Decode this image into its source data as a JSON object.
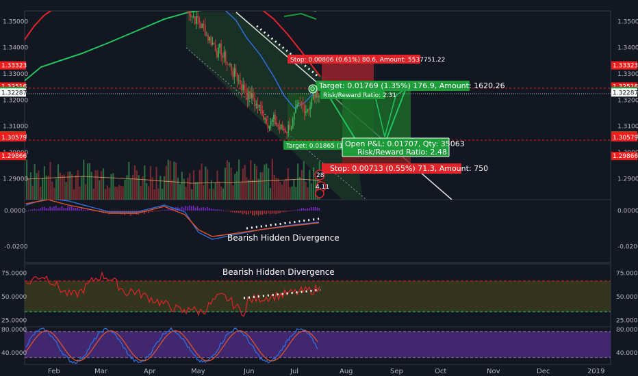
{
  "chart_data": {
    "type": "candlestick",
    "instrument_note": "",
    "price_axis": {
      "range": [
        1.282,
        1.354
      ],
      "ticks": [
        "1.35000",
        "1.34000",
        "1.33000",
        "1.32000",
        "1.31000",
        "1.30000",
        "1.29000"
      ],
      "badges": [
        {
          "label": "1.33323",
          "value": 1.33323,
          "color": "#ef1d1d"
        },
        {
          "label": "1.32517",
          "value": 1.32517,
          "color": "#ef1d1d"
        },
        {
          "label": "1.32516",
          "value": 1.32516,
          "color": "#ef1d1d"
        },
        {
          "label": "1.32348",
          "value": 1.32348,
          "color": "#1e9e3a"
        },
        {
          "label": "1.32287",
          "value": 1.32287,
          "color": "#ffffff"
        },
        {
          "label": "1.30652",
          "value": 1.30652,
          "color": "#1e9e3a"
        },
        {
          "label": "1.30639",
          "value": 1.30639,
          "color": "#ef1d1d"
        },
        {
          "label": "1.30579",
          "value": 1.30579,
          "color": "#ef1d1d"
        },
        {
          "label": "1.29866",
          "value": 1.29866,
          "color": "#ef1d1d"
        }
      ]
    },
    "macd_axis": {
      "range": [
        -0.029,
        0.0062
      ],
      "ticks": [
        "0.0000",
        "-0.0200"
      ]
    },
    "rsi_axis": {
      "range": [
        18,
        85
      ],
      "ticks": [
        "75.0000",
        "50.0000",
        "25.0000"
      ],
      "overbought": 70,
      "oversold": 30
    },
    "stoch_axis": {
      "range": [
        20,
        85
      ],
      "ticks": [
        "80.0000",
        "40.0000"
      ]
    },
    "time_axis": [
      "Feb",
      "Mar",
      "Apr",
      "May",
      "Jun",
      "Jul",
      "Aug",
      "Sep",
      "Oct",
      "Nov",
      "Dec",
      "2019"
    ],
    "trade_boxes": {
      "first": {
        "stop_label": "Stop: 0.00806 (0.61%) 80.6, Amount: 5537751.22",
        "target_label": "Target: 0.01865 (1.41",
        "entry": 1.3214,
        "stop": 1.333,
        "target": 1.306
      },
      "second": {
        "target_label": "Target: 0.01769 (1.35%) 176.9, Amount: 1620.26",
        "rr_label": "Risk/Reward Ratio: 2.31",
        "open_pnl_label": "Open P&L: 0.01707, Qty: 35063",
        "open_rr_label": "Risk/Reward Ratio: 2.48",
        "stop_label": "Stop: 0.00713 (0.55%) 71.3, Amount: 750",
        "entry": 1.3072,
        "stop": 1.2987,
        "target": 1.3252
      }
    },
    "horizontal_levels": [
      {
        "value": 1.32517,
        "color": "#ef1d1d",
        "style": "dashed"
      },
      {
        "value": 1.32287,
        "color": "#d1d4dc",
        "style": "dotted"
      },
      {
        "value": 1.30652,
        "color": "#ef1d1d",
        "style": "dashed"
      }
    ],
    "annotations": [
      {
        "text": "Bearish Hidden Divergence",
        "panel": "macd"
      },
      {
        "text": "Bearish Hidden Divergence",
        "panel": "rsi"
      }
    ],
    "volume_badges": [
      "28",
      "4.11"
    ],
    "panel_marker": "O"
  }
}
